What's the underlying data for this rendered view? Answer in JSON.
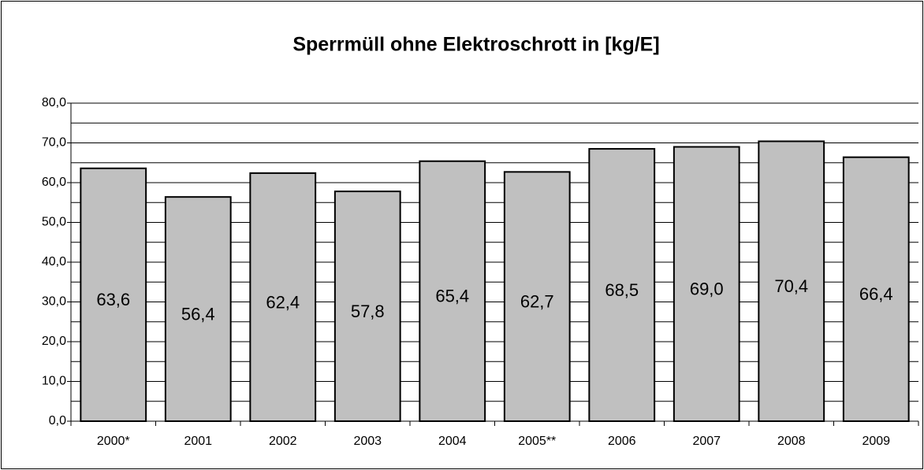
{
  "chart_data": {
    "type": "bar",
    "title": "Sperrmüll ohne Elektroschrott in [kg/E]",
    "categories": [
      "2000*",
      "2001",
      "2002",
      "2003",
      "2004",
      "2005**",
      "2006",
      "2007",
      "2008",
      "2009"
    ],
    "values": [
      63.6,
      56.4,
      62.4,
      57.8,
      65.4,
      62.7,
      68.5,
      69.0,
      70.4,
      66.4
    ],
    "value_labels": [
      "63,6",
      "56,4",
      "62,4",
      "57,8",
      "65,4",
      "62,7",
      "68,5",
      "69,0",
      "70,4",
      "66,4"
    ],
    "color": "#c0c0c0",
    "ylim": [
      0,
      80
    ],
    "yticks": [
      {
        "value": 0,
        "label": "0,0"
      },
      {
        "value": 10,
        "label": "10,0"
      },
      {
        "value": 20,
        "label": "20,0"
      },
      {
        "value": 30,
        "label": "30,0"
      },
      {
        "value": 40,
        "label": "40,0"
      },
      {
        "value": 50,
        "label": "50,0"
      },
      {
        "value": 60,
        "label": "60,0"
      },
      {
        "value": 70,
        "label": "70,0"
      },
      {
        "value": 80,
        "label": "80,0"
      }
    ],
    "minor_yticks": [
      5,
      15,
      25,
      35,
      45,
      55,
      65,
      75
    ],
    "grid": true
  }
}
